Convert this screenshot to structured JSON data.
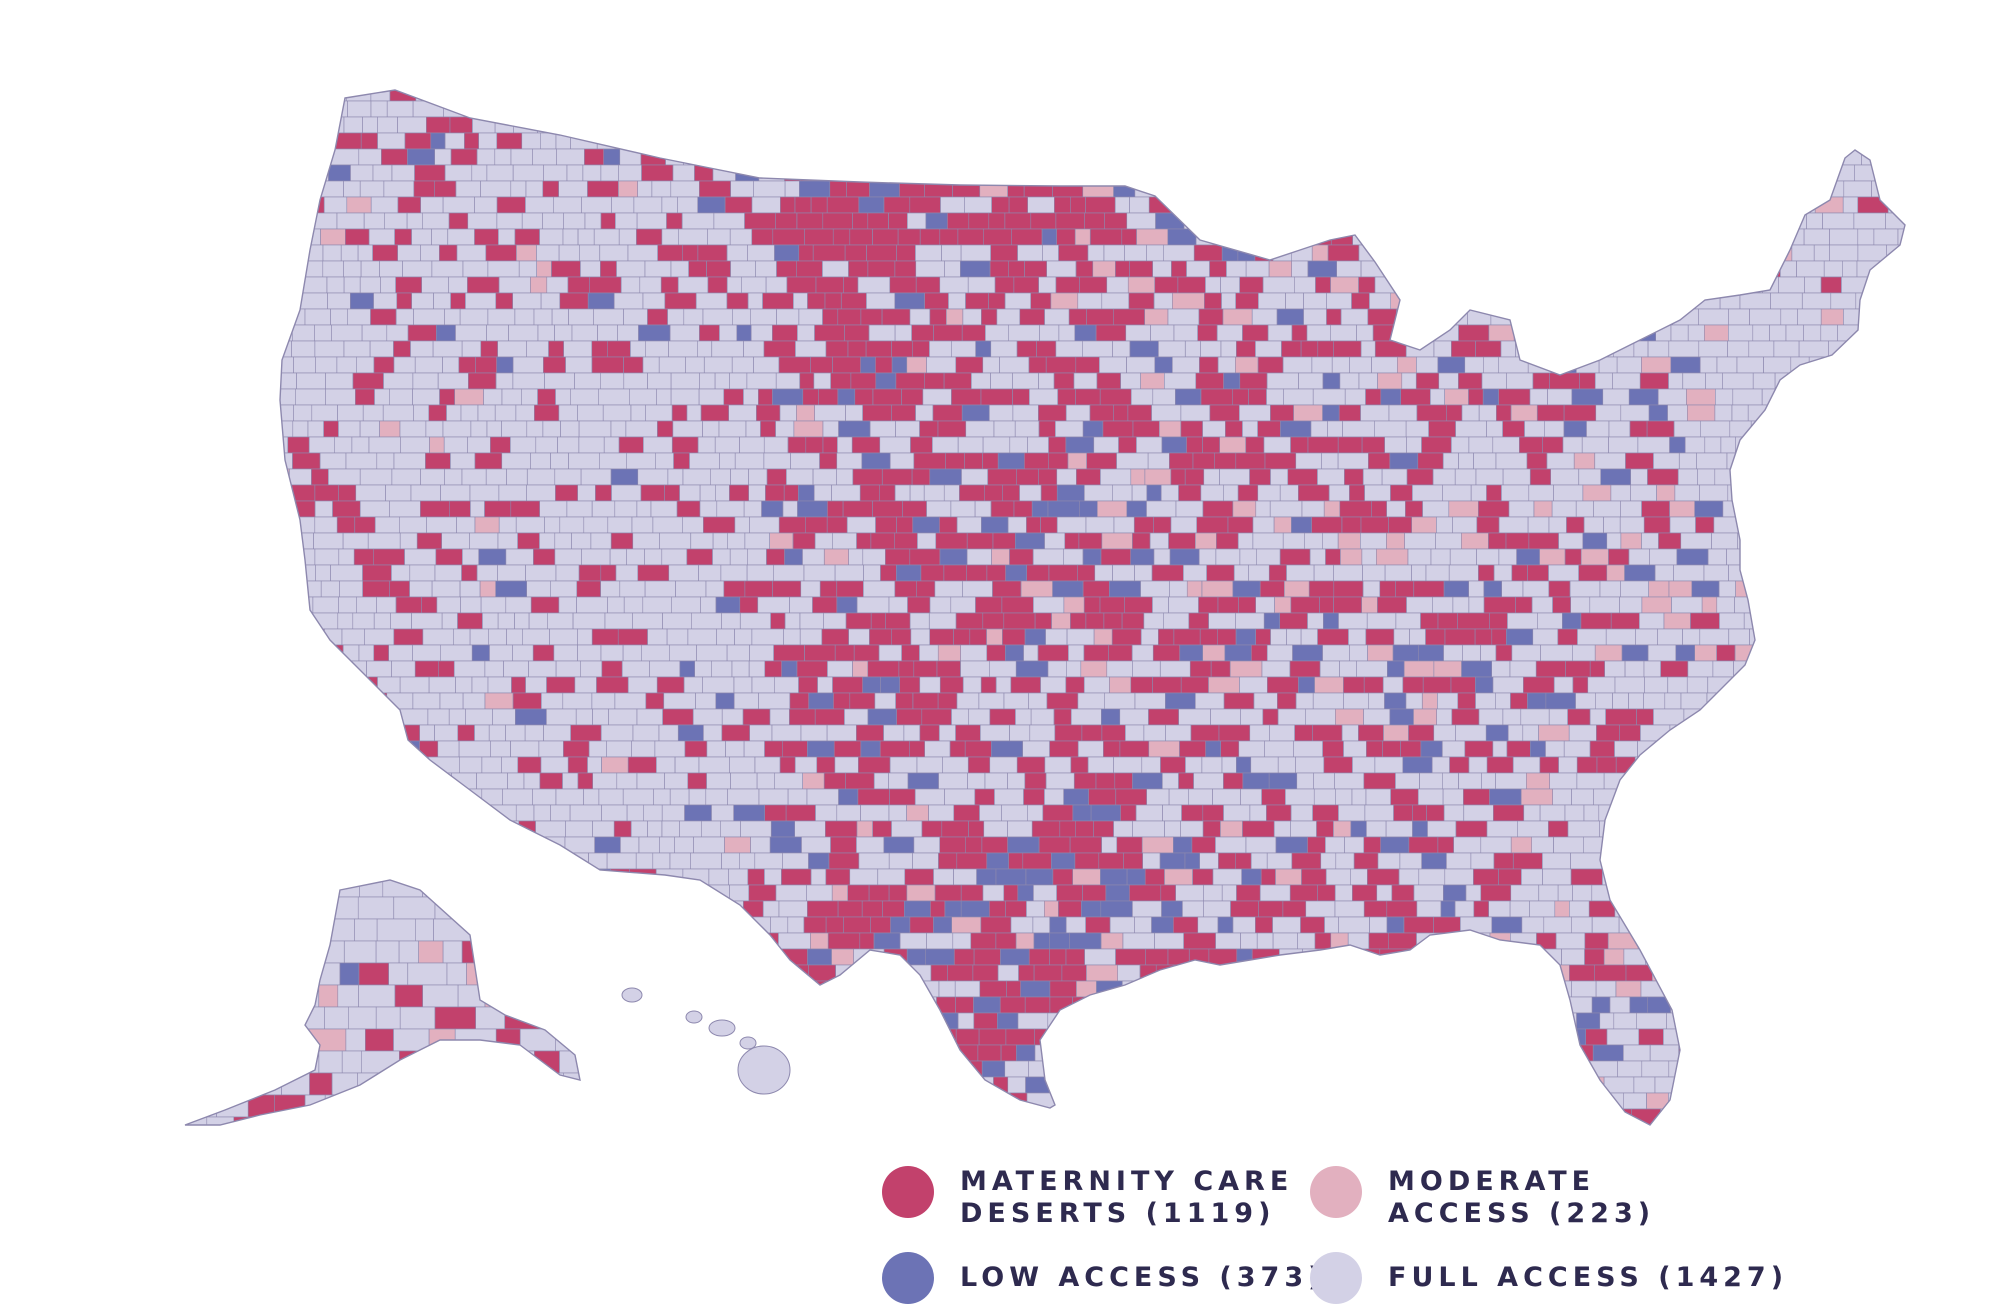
{
  "colors": {
    "desert": "#c2416c",
    "moderate": "#e2b0bf",
    "low": "#6c73b5",
    "full": "#d3d1e6",
    "border": "#8d88ae",
    "background": "#ffffff"
  },
  "legend": {
    "desert": {
      "line1": "MATERNITY CARE",
      "line2": "DESERTS (1119)",
      "color": "#c2416c"
    },
    "moderate": {
      "line1": "MODERATE",
      "line2": "ACCESS (223)",
      "color": "#e2b0bf"
    },
    "low": {
      "label": "LOW ACCESS (373)",
      "color": "#6c73b5"
    },
    "full": {
      "label": "FULL ACCESS (1427)",
      "color": "#d3d1e6"
    }
  }
}
